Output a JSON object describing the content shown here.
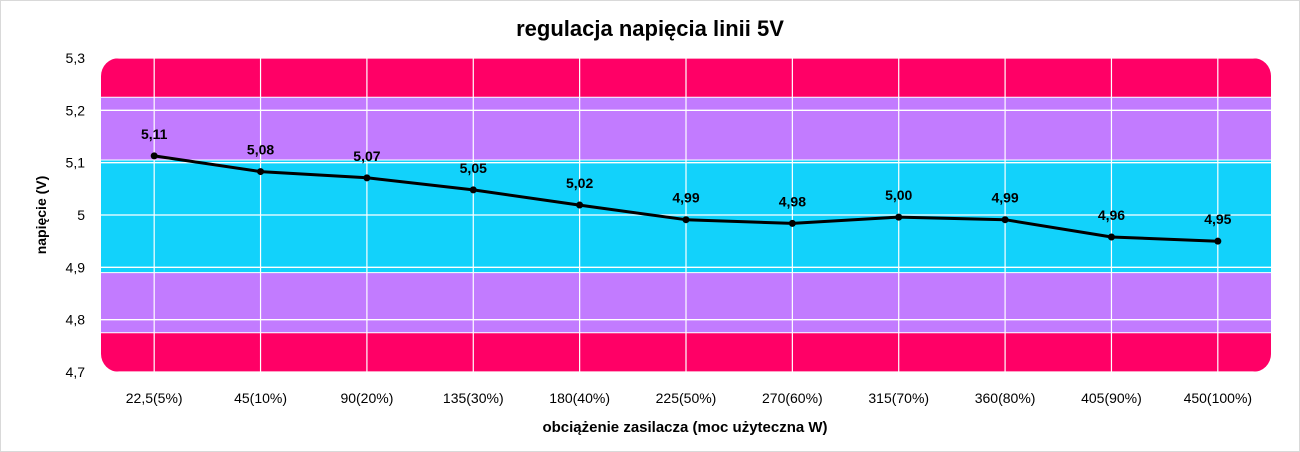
{
  "chart_data": {
    "type": "line",
    "title": "regulacja napięcia linii 5V",
    "xlabel": "obciążenie zasilacza (moc użyteczna W)",
    "ylabel": "napięcie (V)",
    "ylim": [
      4.7,
      5.3
    ],
    "y_ticks": [
      "4,7",
      "4,8",
      "4,9",
      "5",
      "5,1",
      "5,2",
      "5,3"
    ],
    "categories": [
      "22,5(5%)",
      "45(10%)",
      "90(20%)",
      "135(30%)",
      "180(40%)",
      "225(50%)",
      "270(60%)",
      "315(70%)",
      "360(80%)",
      "405(90%)",
      "450(100%)"
    ],
    "values": [
      5.113,
      5.083,
      5.071,
      5.048,
      5.019,
      4.991,
      4.984,
      4.996,
      4.991,
      4.958,
      4.95
    ],
    "data_labels": [
      "5,11",
      "5,08",
      "5,07",
      "5,05",
      "5,02",
      "4,99",
      "4,98",
      "5,00",
      "4,99",
      "4,96",
      "4,95"
    ],
    "grid": true,
    "bands": [
      {
        "from": 5.225,
        "to": 5.3,
        "color": "#ff0066"
      },
      {
        "from": 5.105,
        "to": 5.225,
        "color": "#c27bff"
      },
      {
        "from": 4.89,
        "to": 5.105,
        "color": "#12d2fb"
      },
      {
        "from": 4.775,
        "to": 4.89,
        "color": "#c27bff"
      },
      {
        "from": 4.7,
        "to": 4.775,
        "color": "#ff0066"
      }
    ],
    "line_color": "#000000"
  }
}
